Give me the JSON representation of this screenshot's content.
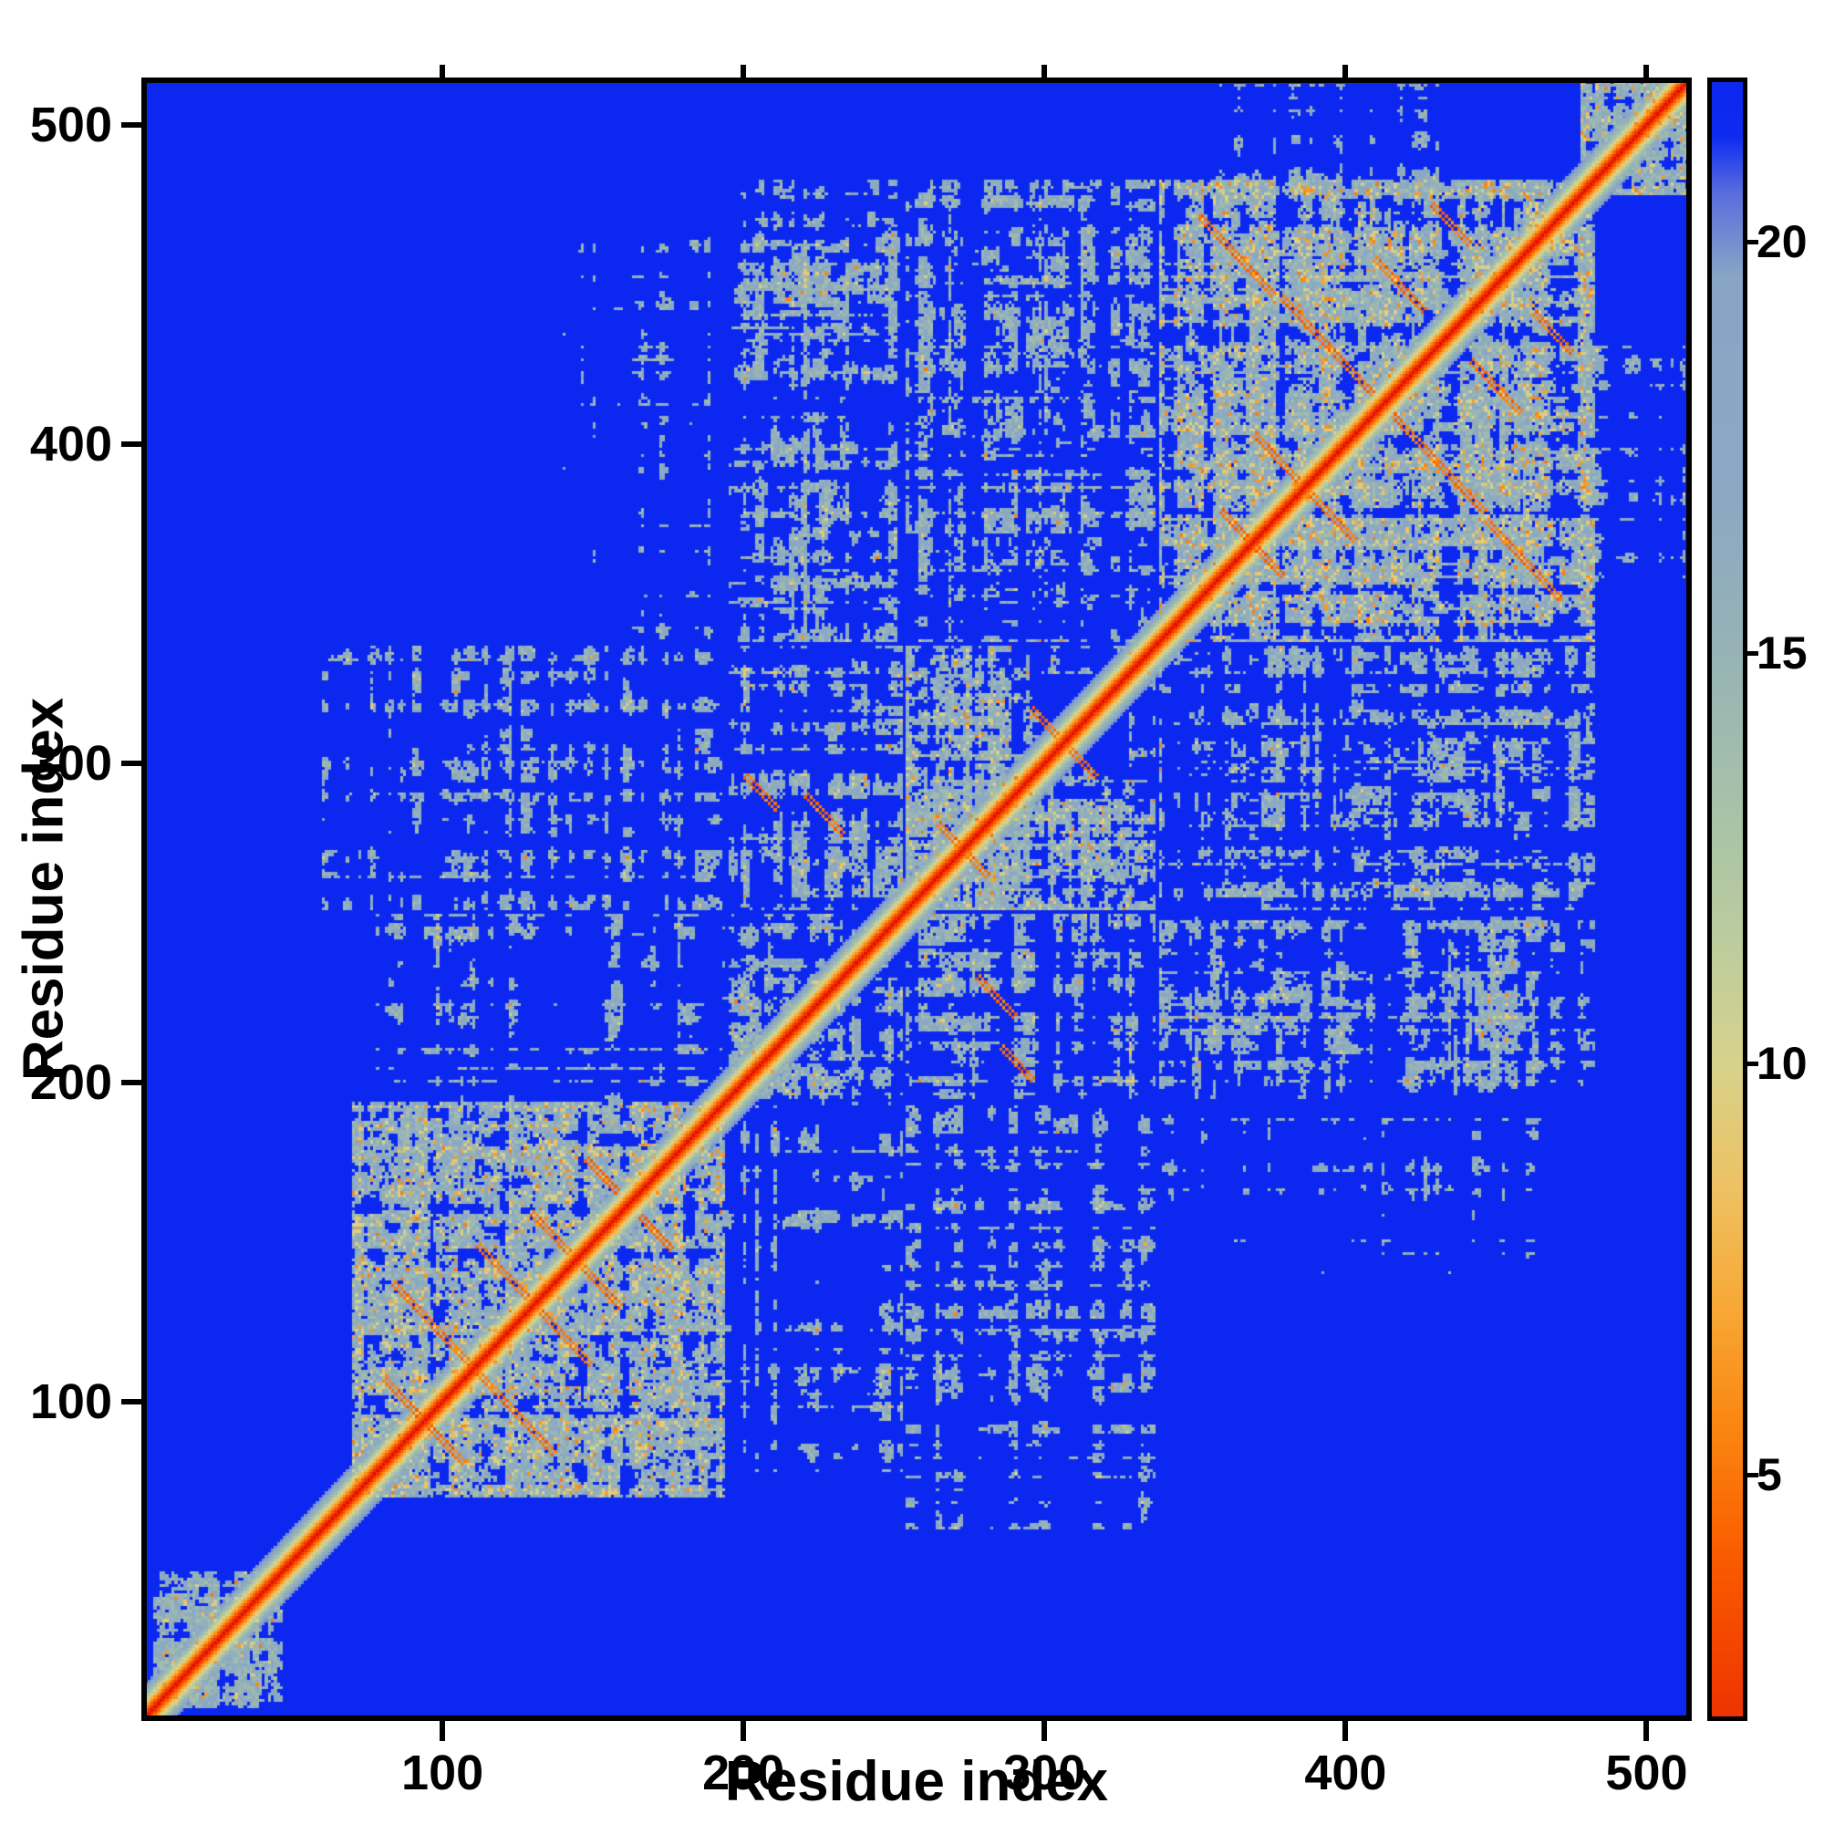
{
  "chart_data": {
    "type": "heatmap",
    "title": "",
    "xlabel": "Residue index",
    "ylabel": "Residue index",
    "x_range": [
      0,
      515
    ],
    "y_range": [
      0,
      515
    ],
    "x_ticks": [
      100,
      200,
      300,
      400,
      500
    ],
    "y_ticks": [
      100,
      200,
      300,
      400,
      500
    ],
    "n_residues": 515,
    "background_value": 22,
    "grid": false,
    "colorbar": {
      "range": [
        2,
        22
      ],
      "ticks": [
        5,
        10,
        15,
        20
      ],
      "position": "right"
    },
    "colormap_stops": [
      [
        0,
        "#e31000"
      ],
      [
        2,
        "#ee3300"
      ],
      [
        4,
        "#fa5c00"
      ],
      [
        5.5,
        "#fb8510"
      ],
      [
        7,
        "#f8a835"
      ],
      [
        8.5,
        "#eec264"
      ],
      [
        10,
        "#d8d28c"
      ],
      [
        11.5,
        "#bccd9e"
      ],
      [
        13,
        "#a8c3a8"
      ],
      [
        15,
        "#97b3b6"
      ],
      [
        17,
        "#8ba8c4"
      ],
      [
        19.6,
        "#88a5c6"
      ],
      [
        20.6,
        "#5a6ede"
      ],
      [
        21.3,
        "#0e2bf2"
      ],
      [
        22,
        "#0c28f0"
      ]
    ],
    "diagonal": {
      "halo_width": 10,
      "slope": 2.0
    },
    "clusters": [
      {
        "x0": 4,
        "x1": 46,
        "y0": 4,
        "y1": 46,
        "density": 0.55,
        "hot": 0.1
      },
      {
        "x0": 70,
        "x1": 193,
        "y0": 70,
        "y1": 193,
        "density": 0.5,
        "hot": 0.22
      },
      {
        "x0": 193,
        "x1": 252,
        "y0": 193,
        "y1": 252,
        "density": 0.45,
        "hot": 0.12
      },
      {
        "x0": 254,
        "x1": 336,
        "y0": 254,
        "y1": 336,
        "density": 0.45,
        "hot": 0.15,
        "holes": [
          [
            289,
            327,
            298,
            338
          ]
        ]
      },
      {
        "x0": 338,
        "x1": 482,
        "y0": 338,
        "y1": 482,
        "density": 0.48,
        "hot": 0.22
      },
      {
        "x0": 478,
        "x1": 513,
        "y0": 478,
        "y1": 513,
        "density": 0.5,
        "hot": 0.1
      },
      {
        "x0": 195,
        "x1": 252,
        "y0": 254,
        "y1": 336,
        "density": 0.4,
        "hot": 0.1
      },
      {
        "x0": 78,
        "x1": 192,
        "y0": 194,
        "y1": 252,
        "density": 0.28,
        "hot": 0.05
      },
      {
        "x0": 60,
        "x1": 192,
        "y0": 254,
        "y1": 336,
        "density": 0.22,
        "hot": 0.06
      },
      {
        "x0": 338,
        "x1": 482,
        "y0": 196,
        "y1": 250,
        "density": 0.32,
        "hot": 0.08
      },
      {
        "x0": 338,
        "x1": 482,
        "y0": 254,
        "y1": 336,
        "density": 0.26,
        "hot": 0.06
      },
      {
        "x0": 195,
        "x1": 252,
        "y0": 338,
        "y1": 478,
        "density": 0.26,
        "hot": 0.06
      },
      {
        "x0": 254,
        "x1": 336,
        "y0": 338,
        "y1": 478,
        "density": 0.28,
        "hot": 0.08
      },
      {
        "x0": 140,
        "x1": 192,
        "y0": 338,
        "y1": 470,
        "density": 0.1,
        "hot": 0.03
      },
      {
        "x0": 350,
        "x1": 430,
        "y0": 478,
        "y1": 512,
        "density": 0.18,
        "hot": 0.04
      }
    ],
    "streaks": [
      {
        "x": 96,
        "y": 123,
        "len": 26
      },
      {
        "x": 119,
        "y": 140,
        "len": 16
      },
      {
        "x": 86,
        "y": 100,
        "len": 12
      },
      {
        "x": 135,
        "y": 152,
        "len": 12
      },
      {
        "x": 152,
        "y": 170,
        "len": 10
      },
      {
        "x": 363,
        "y": 458,
        "len": 24
      },
      {
        "x": 393,
        "y": 430,
        "len": 30
      },
      {
        "x": 417,
        "y": 449,
        "len": 16
      },
      {
        "x": 377,
        "y": 394,
        "len": 16
      },
      {
        "x": 434,
        "y": 468,
        "len": 12
      },
      {
        "x": 205,
        "y": 290,
        "len": 10
      },
      {
        "x": 226,
        "y": 283,
        "len": 12
      },
      {
        "x": 299,
        "y": 312,
        "len": 8
      },
      {
        "x": 363,
        "y": 373,
        "len": 10
      },
      {
        "x": 268,
        "y": 276,
        "len": 8
      }
    ],
    "seed": 7
  }
}
